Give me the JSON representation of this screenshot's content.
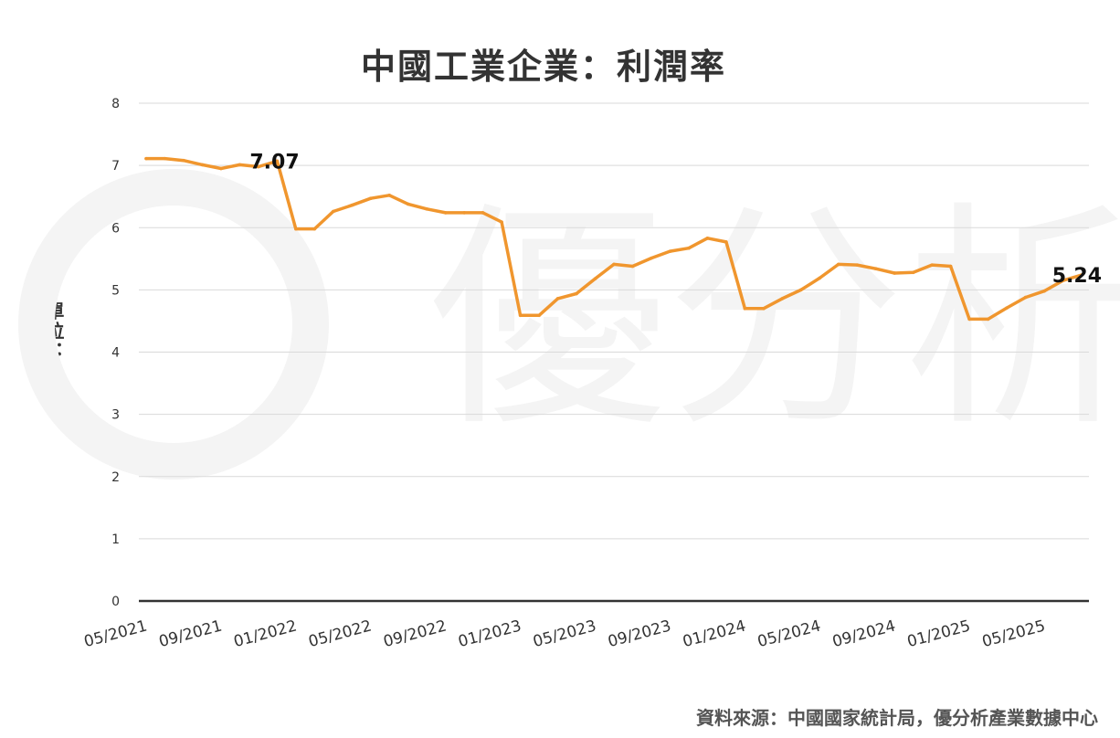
{
  "title": "中國工業企業：利潤率",
  "ylabel": "單位：%",
  "source": "資料來源：中國國家統計局，優分析產業數據中心",
  "colors": {
    "line": "#F0962E",
    "grid": "#D9D9D9",
    "axis": "#333333",
    "watermark": "#F4F4F4"
  },
  "chart_data": {
    "type": "line",
    "title": "中國工業企業：利潤率",
    "xlabel": "",
    "ylabel": "單位：%",
    "ylim": [
      0,
      8
    ],
    "yticks": [
      "0",
      "1",
      "2",
      "3",
      "4",
      "5",
      "6",
      "7",
      "8"
    ],
    "grid": true,
    "x_tick_labels": [
      "05/2021",
      "09/2021",
      "01/2022",
      "05/2022",
      "09/2022",
      "01/2023",
      "05/2023",
      "09/2023",
      "01/2024",
      "05/2024",
      "09/2024",
      "01/2025",
      "05/2025"
    ],
    "x": [
      "05/2021",
      "06/2021",
      "07/2021",
      "08/2021",
      "09/2021",
      "10/2021",
      "11/2021",
      "12/2021",
      "01/2022",
      "02/2022",
      "03/2022",
      "04/2022",
      "05/2022",
      "06/2022",
      "07/2022",
      "08/2022",
      "09/2022",
      "10/2022",
      "11/2022",
      "12/2022",
      "01/2023",
      "02/2023",
      "03/2023",
      "04/2023",
      "05/2023",
      "06/2023",
      "07/2023",
      "08/2023",
      "09/2023",
      "10/2023",
      "11/2023",
      "12/2023",
      "01/2024",
      "02/2024",
      "03/2024",
      "04/2024",
      "05/2024",
      "06/2024",
      "07/2024",
      "08/2024",
      "09/2024",
      "10/2024",
      "11/2024",
      "12/2024",
      "01/2025",
      "02/2025",
      "03/2025",
      "04/2025",
      "05/2025",
      "06/2025",
      "07/2025"
    ],
    "series": [
      {
        "values": [
          7.11,
          7.11,
          7.08,
          7.01,
          6.95,
          7.01,
          6.98,
          7.07,
          5.98,
          5.98,
          6.26,
          6.36,
          6.47,
          6.52,
          6.38,
          6.3,
          6.24,
          6.24,
          6.24,
          6.09,
          4.59,
          4.59,
          4.86,
          4.94,
          5.18,
          5.41,
          5.38,
          5.51,
          5.62,
          5.67,
          5.83,
          5.77,
          4.7,
          4.7,
          4.86,
          5.0,
          5.19,
          5.41,
          5.4,
          5.34,
          5.27,
          5.28,
          5.4,
          5.38,
          4.53,
          4.53,
          4.71,
          4.88,
          4.98,
          5.15,
          5.24
        ]
      }
    ],
    "annotations": [
      {
        "index": 7,
        "text": "7.07"
      },
      {
        "index": 50,
        "text": "5.24"
      }
    ]
  }
}
